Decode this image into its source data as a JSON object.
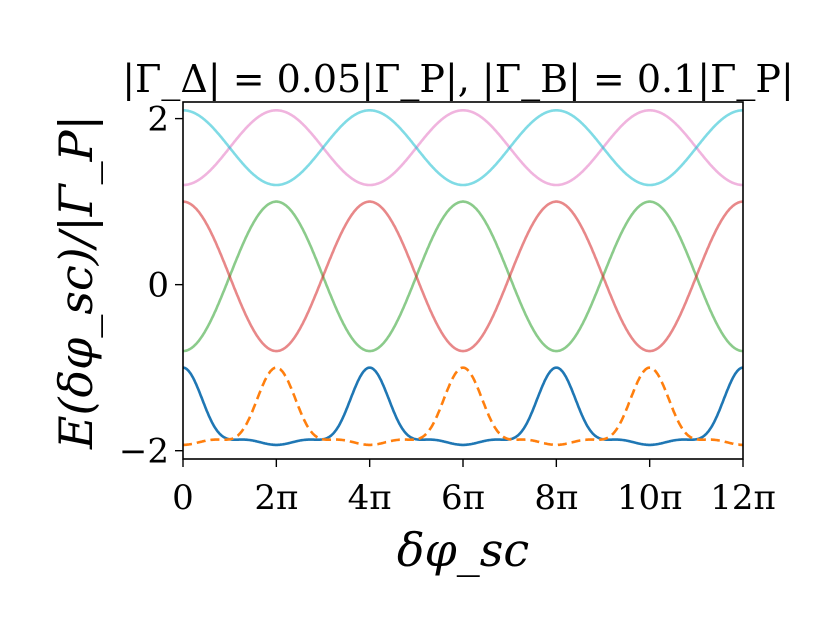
{
  "chart_data": {
    "type": "line",
    "title": "|Γ_Δ| = 0.05|Γ_P|, |Γ_B| = 0.1|Γ_P|",
    "xlabel": "δφ_sc",
    "ylabel": "E(δφ_sc)/|Γ_P|",
    "xlim": [
      0,
      37.699
    ],
    "ylim": [
      -2.1,
      2.2
    ],
    "x_ticks": [
      0,
      6.2832,
      12.5664,
      18.8496,
      25.1327,
      31.4159,
      37.6991
    ],
    "x_tick_labels": [
      "0",
      "2π",
      "4π",
      "6π",
      "8π",
      "10π",
      "12π"
    ],
    "y_ticks": [
      -2,
      0,
      2
    ],
    "y_tick_labels": [
      "−2",
      "0",
      "2"
    ],
    "grid": false,
    "legend": "none",
    "series": [
      {
        "color": "#1f77b4",
        "style": "solid",
        "kind": "bottom",
        "phase": 0,
        "min": -1.9,
        "max": -1.0
      },
      {
        "color": "#ff7f0e",
        "style": "dashed",
        "kind": "bottom",
        "phase": 1,
        "min": -1.9,
        "max": -1.0
      },
      {
        "color": "#2ca02c",
        "style": "solid",
        "kind": "mid",
        "phase": 0,
        "min": -0.8,
        "max": 1.0
      },
      {
        "color": "#d62728",
        "style": "solid",
        "kind": "mid",
        "phase": 1,
        "min": -0.8,
        "max": 1.0
      },
      {
        "color": "#e377c2",
        "style": "solid",
        "kind": "top",
        "phase": 0,
        "min": 1.2,
        "max": 2.1
      },
      {
        "color": "#17becf",
        "style": "solid",
        "kind": "top",
        "phase": 1,
        "min": 1.2,
        "max": 2.1
      }
    ]
  }
}
